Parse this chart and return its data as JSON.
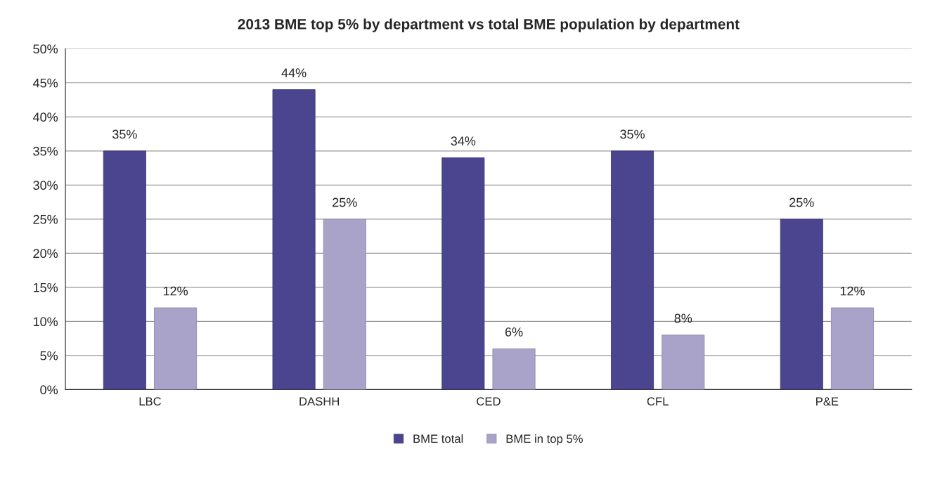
{
  "chart_data": {
    "type": "bar",
    "title": "2013 BME top 5% by department vs total BME population by department",
    "categories": [
      "LBC",
      "DASHH",
      "CED",
      "CFL",
      "P&E"
    ],
    "series": [
      {
        "name": "BME total",
        "color": "#4b4590",
        "values": [
          35,
          44,
          34,
          35,
          25
        ],
        "value_labels": [
          "35%",
          "44%",
          "34%",
          "35%",
          "25%"
        ]
      },
      {
        "name": "BME in top 5%",
        "color": "#a9a3c9",
        "values": [
          12,
          25,
          6,
          8,
          12
        ],
        "value_labels": [
          "12%",
          "25%",
          "6%",
          "8%",
          "12%"
        ]
      }
    ],
    "ylim": [
      0,
      50
    ],
    "yticks": [
      {
        "value": 0,
        "label": "0%"
      },
      {
        "value": 5,
        "label": "5%"
      },
      {
        "value": 10,
        "label": "10%"
      },
      {
        "value": 15,
        "label": "15%"
      },
      {
        "value": 20,
        "label": "20%"
      },
      {
        "value": 25,
        "label": "25%"
      },
      {
        "value": 30,
        "label": "30%"
      },
      {
        "value": 35,
        "label": "35%"
      },
      {
        "value": 40,
        "label": "40%"
      },
      {
        "value": 45,
        "label": "45%"
      },
      {
        "value": 50,
        "label": "50%"
      }
    ],
    "grid": "y",
    "legend": "bottom"
  }
}
